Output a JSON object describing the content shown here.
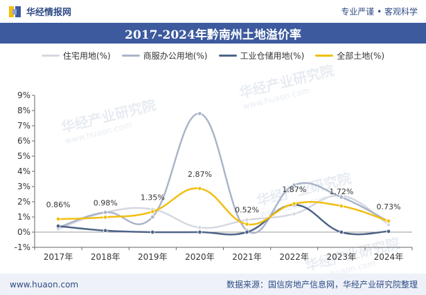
{
  "header": {
    "brand": "华经情报网",
    "tagline": "专业严谨 • 客观科学"
  },
  "colors": {
    "band": "#3d5a9e",
    "brand_text": "#2f4a85"
  },
  "watermark": {
    "text": "华经产业研究院",
    "sub": "www.huaon.com"
  },
  "chart_data": {
    "type": "line",
    "title": "2017-2024年黔南州土地溢价率",
    "categories": [
      "2017年",
      "2018年",
      "2019年",
      "2020年",
      "2021年",
      "2022年",
      "2023年",
      "2024年"
    ],
    "ylim": [
      -1,
      9
    ],
    "yticks": [
      -1,
      0,
      1,
      2,
      3,
      4,
      5,
      6,
      7,
      8,
      9
    ],
    "ytick_labels": [
      "-1%",
      "0%",
      "1%",
      "2%",
      "3%",
      "4%",
      "5%",
      "6%",
      "7%",
      "8%",
      "9%"
    ],
    "grid": false,
    "legend_position": "top",
    "series": [
      {
        "name": "住宅用地(%)",
        "color": "#d4d8e2",
        "values": [
          0.2,
          1.3,
          1.5,
          0.3,
          0.8,
          1.2,
          2.4,
          0.5
        ]
      },
      {
        "name": "商服办公用地(%)",
        "color": "#aab4c8",
        "values": [
          0.3,
          1.3,
          1.0,
          7.8,
          0.1,
          3.1,
          2.3,
          0.7
        ]
      },
      {
        "name": "工业仓储用地(%)",
        "color": "#4e6487",
        "values": [
          0.4,
          0.1,
          0.0,
          0.0,
          0.0,
          1.8,
          0.0,
          0.05
        ]
      },
      {
        "name": "全部土地(%)",
        "color": "#f2be0e",
        "values": [
          0.86,
          0.98,
          1.35,
          2.87,
          0.52,
          1.87,
          1.72,
          0.73
        ],
        "labels": [
          "0.86%",
          "0.98%",
          "1.35%",
          "2.87%",
          "0.52%",
          "1.87%",
          "1.72%",
          "0.73%"
        ]
      }
    ]
  },
  "footer": {
    "url": "www.huaon.com",
    "source": "数据来源：国信房地产信息网，华经产业研究院整理"
  }
}
